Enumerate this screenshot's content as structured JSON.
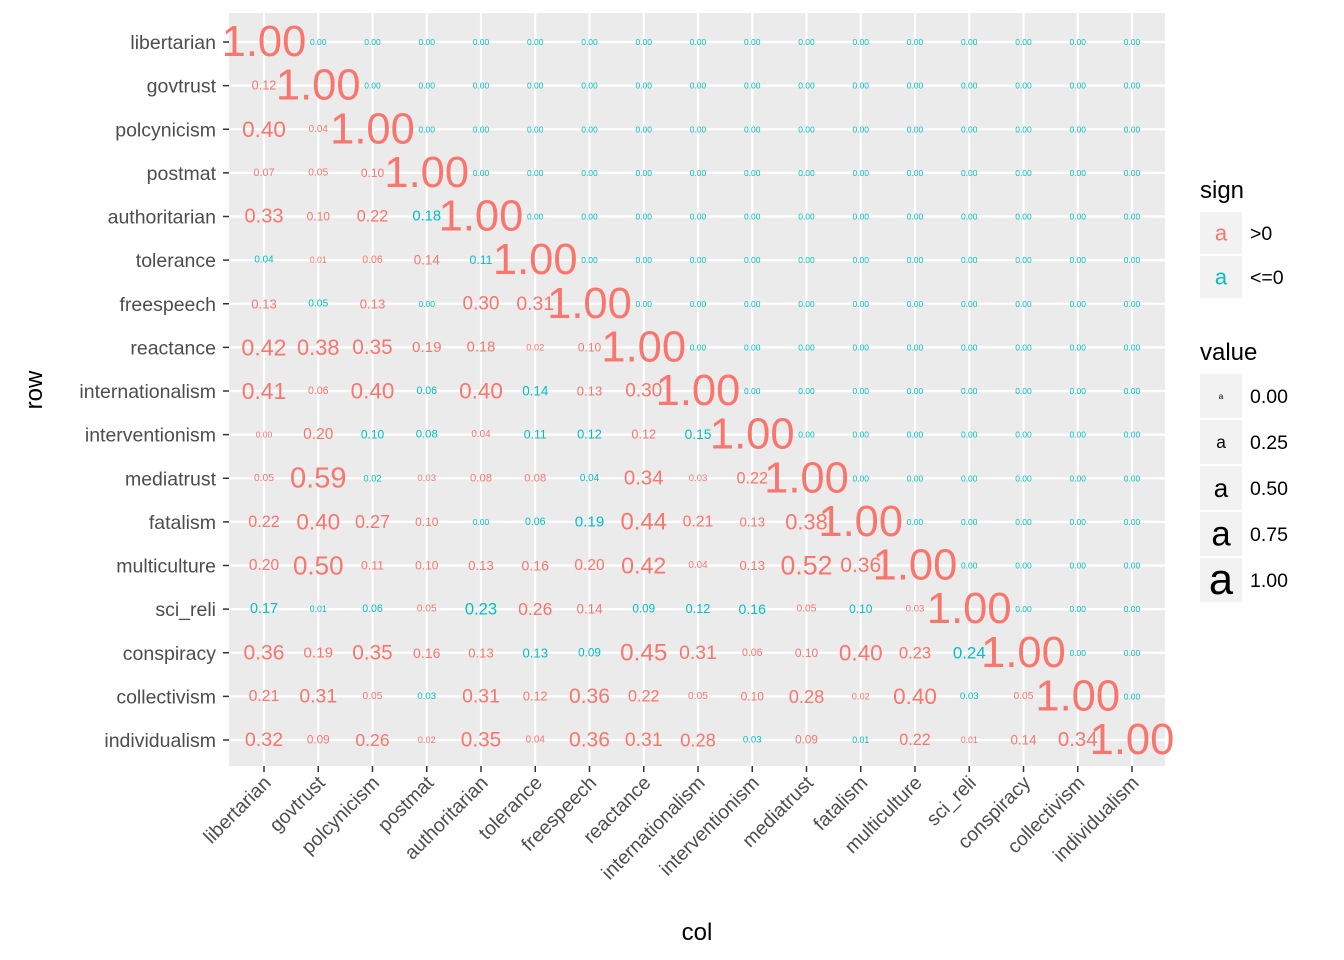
{
  "chart_data": {
    "type": "heatmap",
    "variables": [
      "libertarian",
      "govtrust",
      "polcynicism",
      "postmat",
      "authoritarian",
      "tolerance",
      "freespeech",
      "reactance",
      "internationalism",
      "interventionism",
      "mediatrust",
      "fatalism",
      "multiculture",
      "sci_reli",
      "conspiracy",
      "collectivism",
      "individualism"
    ],
    "xlabel": "col",
    "ylabel": "row",
    "cells_rows": [
      [
        [
          "1.00",
          "+"
        ]
      ],
      [
        [
          "0.12",
          "+"
        ],
        [
          "1.00",
          "+"
        ]
      ],
      [
        [
          "0.40",
          "+"
        ],
        [
          "0.04",
          "+"
        ],
        [
          "1.00",
          "+"
        ]
      ],
      [
        [
          "0.07",
          "+"
        ],
        [
          "0.05",
          "+"
        ],
        [
          "0.10",
          "+"
        ],
        [
          "1.00",
          "+"
        ]
      ],
      [
        [
          "0.33",
          "+"
        ],
        [
          "0.10",
          "+"
        ],
        [
          "0.22",
          "+"
        ],
        [
          "0.18",
          "-"
        ],
        [
          "1.00",
          "+"
        ]
      ],
      [
        [
          "0.04",
          "-"
        ],
        [
          "0.01",
          "+"
        ],
        [
          "0.06",
          "+"
        ],
        [
          "0.14",
          "+"
        ],
        [
          "0.11",
          "-"
        ],
        [
          "1.00",
          "+"
        ]
      ],
      [
        [
          "0.13",
          "+"
        ],
        [
          "0.05",
          "-"
        ],
        [
          "0.13",
          "+"
        ],
        [
          "0.00",
          "-"
        ],
        [
          "0.30",
          "+"
        ],
        [
          "0.31",
          "+"
        ],
        [
          "1.00",
          "+"
        ]
      ],
      [
        [
          "0.42",
          "+"
        ],
        [
          "0.38",
          "+"
        ],
        [
          "0.35",
          "+"
        ],
        [
          "0.19",
          "+"
        ],
        [
          "0.18",
          "+"
        ],
        [
          "0.02",
          "+"
        ],
        [
          "0.10",
          "+"
        ],
        [
          "1.00",
          "+"
        ]
      ],
      [
        [
          "0.41",
          "+"
        ],
        [
          "0.06",
          "+"
        ],
        [
          "0.40",
          "+"
        ],
        [
          "0.06",
          "-"
        ],
        [
          "0.40",
          "+"
        ],
        [
          "0.14",
          "-"
        ],
        [
          "0.13",
          "+"
        ],
        [
          "0.30",
          "+"
        ],
        [
          "1.00",
          "+"
        ]
      ],
      [
        [
          "0.00",
          "+"
        ],
        [
          "0.20",
          "+"
        ],
        [
          "0.10",
          "-"
        ],
        [
          "0.08",
          "-"
        ],
        [
          "0.04",
          "+"
        ],
        [
          "0.11",
          "-"
        ],
        [
          "0.12",
          "-"
        ],
        [
          "0.12",
          "+"
        ],
        [
          "0.15",
          "-"
        ],
        [
          "1.00",
          "+"
        ]
      ],
      [
        [
          "0.05",
          "+"
        ],
        [
          "0.59",
          "+"
        ],
        [
          "0.02",
          "-"
        ],
        [
          "0.03",
          "+"
        ],
        [
          "0.08",
          "+"
        ],
        [
          "0.08",
          "+"
        ],
        [
          "0.04",
          "-"
        ],
        [
          "0.34",
          "+"
        ],
        [
          "0.03",
          "+"
        ],
        [
          "0.22",
          "+"
        ],
        [
          "1.00",
          "+"
        ]
      ],
      [
        [
          "0.22",
          "+"
        ],
        [
          "0.40",
          "+"
        ],
        [
          "0.27",
          "+"
        ],
        [
          "0.10",
          "+"
        ],
        [
          "0.00",
          "-"
        ],
        [
          "0.06",
          "-"
        ],
        [
          "0.19",
          "-"
        ],
        [
          "0.44",
          "+"
        ],
        [
          "0.21",
          "+"
        ],
        [
          "0.13",
          "+"
        ],
        [
          "0.38",
          "+"
        ],
        [
          "1.00",
          "+"
        ]
      ],
      [
        [
          "0.20",
          "+"
        ],
        [
          "0.50",
          "+"
        ],
        [
          "0.11",
          "+"
        ],
        [
          "0.10",
          "+"
        ],
        [
          "0.13",
          "+"
        ],
        [
          "0.16",
          "+"
        ],
        [
          "0.20",
          "+"
        ],
        [
          "0.42",
          "+"
        ],
        [
          "0.04",
          "+"
        ],
        [
          "0.13",
          "+"
        ],
        [
          "0.52",
          "+"
        ],
        [
          "0.36",
          "+"
        ],
        [
          "1.00",
          "+"
        ]
      ],
      [
        [
          "0.17",
          "-"
        ],
        [
          "0.01",
          "-"
        ],
        [
          "0.06",
          "-"
        ],
        [
          "0.05",
          "+"
        ],
        [
          "0.23",
          "-"
        ],
        [
          "0.26",
          "+"
        ],
        [
          "0.14",
          "+"
        ],
        [
          "0.09",
          "-"
        ],
        [
          "0.12",
          "-"
        ],
        [
          "0.16",
          "-"
        ],
        [
          "0.05",
          "+"
        ],
        [
          "0.10",
          "-"
        ],
        [
          "0.03",
          "+"
        ],
        [
          "1.00",
          "+"
        ]
      ],
      [
        [
          "0.36",
          "+"
        ],
        [
          "0.19",
          "+"
        ],
        [
          "0.35",
          "+"
        ],
        [
          "0.16",
          "+"
        ],
        [
          "0.13",
          "+"
        ],
        [
          "0.13",
          "-"
        ],
        [
          "0.09",
          "-"
        ],
        [
          "0.45",
          "+"
        ],
        [
          "0.31",
          "+"
        ],
        [
          "0.06",
          "+"
        ],
        [
          "0.10",
          "+"
        ],
        [
          "0.40",
          "+"
        ],
        [
          "0.23",
          "+"
        ],
        [
          "0.24",
          "-"
        ],
        [
          "1.00",
          "+"
        ]
      ],
      [
        [
          "0.21",
          "+"
        ],
        [
          "0.31",
          "+"
        ],
        [
          "0.05",
          "+"
        ],
        [
          "0.03",
          "-"
        ],
        [
          "0.31",
          "+"
        ],
        [
          "0.12",
          "+"
        ],
        [
          "0.36",
          "+"
        ],
        [
          "0.22",
          "+"
        ],
        [
          "0.05",
          "+"
        ],
        [
          "0.10",
          "+"
        ],
        [
          "0.28",
          "+"
        ],
        [
          "0.02",
          "+"
        ],
        [
          "0.40",
          "+"
        ],
        [
          "0.03",
          "-"
        ],
        [
          "0.05",
          "+"
        ],
        [
          "1.00",
          "+"
        ]
      ],
      [
        [
          "0.32",
          "+"
        ],
        [
          "0.09",
          "+"
        ],
        [
          "0.26",
          "+"
        ],
        [
          "0.02",
          "+"
        ],
        [
          "0.35",
          "+"
        ],
        [
          "0.04",
          "+"
        ],
        [
          "0.36",
          "+"
        ],
        [
          "0.31",
          "+"
        ],
        [
          "0.28",
          "+"
        ],
        [
          "0.03",
          "-"
        ],
        [
          "0.09",
          "+"
        ],
        [
          "0.01",
          "-"
        ],
        [
          "0.22",
          "+"
        ],
        [
          "0.01",
          "+"
        ],
        [
          "0.14",
          "+"
        ],
        [
          "0.34",
          "+"
        ],
        [
          "1.00",
          "+"
        ]
      ]
    ],
    "upper_value": "0.00",
    "legend_sign": {
      "title": "sign",
      "key_glyph": "a",
      "items": [
        {
          "label": ">0",
          "color": "#F8766D"
        },
        {
          "label": "<=0",
          "color": "#00BFC4"
        }
      ]
    },
    "legend_value": {
      "title": "value",
      "key_glyph": "a",
      "items": [
        "0.00",
        "0.25",
        "0.50",
        "0.75",
        "1.00"
      ]
    },
    "colors": {
      "positive": "#F8766D",
      "nonpositive": "#00BFC4",
      "panel": "#EBEBEB",
      "grid": "#FFFFFF"
    }
  }
}
